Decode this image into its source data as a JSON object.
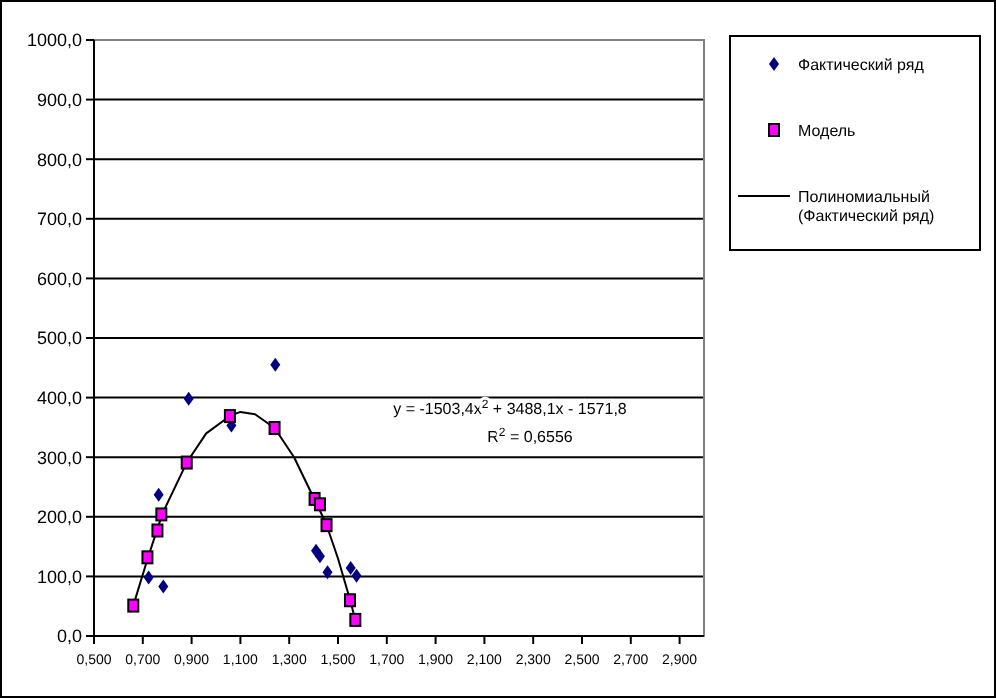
{
  "chart_data": {
    "type": "scatter",
    "xlim": [
      0.5,
      3.0
    ],
    "xticks": [
      {
        "value": 0.5,
        "label": "0,500"
      },
      {
        "value": 0.7,
        "label": "0,700"
      },
      {
        "value": 0.9,
        "label": "0,900"
      },
      {
        "value": 1.1,
        "label": "1,100"
      },
      {
        "value": 1.3,
        "label": "1,300"
      },
      {
        "value": 1.5,
        "label": "1,500"
      },
      {
        "value": 1.7,
        "label": "1,700"
      },
      {
        "value": 1.9,
        "label": "1,900"
      },
      {
        "value": 2.1,
        "label": "2,100"
      },
      {
        "value": 2.3,
        "label": "2,300"
      },
      {
        "value": 2.5,
        "label": "2,500"
      },
      {
        "value": 2.7,
        "label": "2,700"
      },
      {
        "value": 2.9,
        "label": "2,900"
      }
    ],
    "ylim": [
      0,
      1000
    ],
    "yticks": [
      {
        "value": 0,
        "label": "0,0"
      },
      {
        "value": 100,
        "label": "100,0"
      },
      {
        "value": 200,
        "label": "200,0"
      },
      {
        "value": 300,
        "label": "300,0"
      },
      {
        "value": 400,
        "label": "400,0"
      },
      {
        "value": 500,
        "label": "500,0"
      },
      {
        "value": 600,
        "label": "600,0"
      },
      {
        "value": 700,
        "label": "700,0"
      },
      {
        "value": 800,
        "label": "800,0"
      },
      {
        "value": 900,
        "label": "900,0"
      },
      {
        "value": 1000,
        "label": "1000,0"
      }
    ],
    "grid": "y",
    "legend": "right",
    "series": [
      {
        "name": "Фактический ряд",
        "type": "scatter",
        "marker": "diamond",
        "color": "#000080",
        "x": [
          0.724,
          0.765,
          0.784,
          0.888,
          1.063,
          1.243,
          1.41,
          1.426,
          1.457,
          1.552,
          1.576
        ],
        "values": [
          98,
          237,
          83,
          398,
          353,
          455,
          143,
          134,
          107,
          114,
          101
        ]
      },
      {
        "name": "Модель",
        "type": "scatter",
        "marker": "square",
        "color": "#ff00ff",
        "x": [
          0.661,
          0.719,
          0.76,
          0.776,
          0.88,
          1.057,
          1.24,
          1.404,
          1.426,
          1.453,
          1.549,
          1.571
        ],
        "values": [
          51,
          132,
          177,
          204,
          291,
          369,
          349,
          230,
          221,
          186,
          60,
          27
        ]
      },
      {
        "name": "Полиномиальный (Фактический ряд)",
        "type": "line",
        "marker": "none",
        "color": "#000000",
        "x": [
          0.661,
          0.72,
          0.78,
          0.88,
          0.96,
          1.06,
          1.1,
          1.16,
          1.24,
          1.32,
          1.4,
          1.45,
          1.5,
          1.55,
          1.571
        ],
        "values": [
          51,
          130,
          205,
          291,
          340,
          370,
          376,
          372,
          349,
          300,
          232,
          190,
          130,
          60,
          27
        ]
      }
    ],
    "annotations": [
      "y = -1503,4x$^{2}$ + 3488,1x - 1571,8",
      "R$^{2}$ = 0,6556"
    ]
  }
}
